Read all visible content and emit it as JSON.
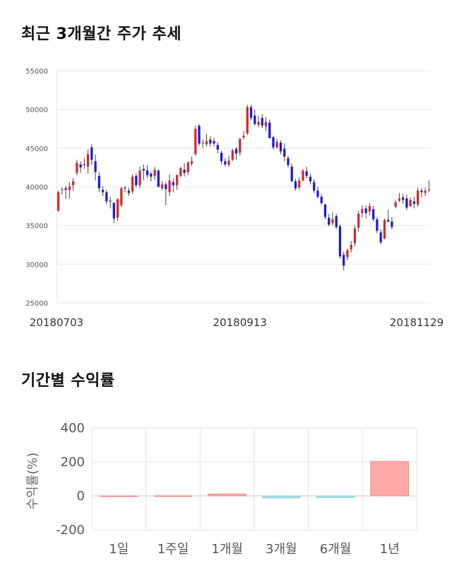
{
  "section1": {
    "title": "최근 3개월간 주가 추세"
  },
  "section2": {
    "title": "기간별 수익률"
  },
  "chart_data": [
    {
      "type": "candlestick",
      "ylim": [
        25000,
        55000
      ],
      "y_ticks": [
        "55000",
        "50000",
        "45000",
        "40000",
        "35000",
        "30000",
        "25000"
      ],
      "x_labels": [
        "20180703",
        "20180913",
        "20181129"
      ],
      "grid": true,
      "colors": {
        "up": "#d62728",
        "down": "#1a1ad6",
        "wick": "#444444"
      },
      "candles": [
        [
          36900,
          39300,
          39500,
          36800
        ],
        [
          39600,
          39700,
          39900,
          39000
        ],
        [
          39800,
          39600,
          40100,
          38400
        ],
        [
          39600,
          40000,
          40600,
          38500
        ],
        [
          40200,
          40700,
          41100,
          39500
        ],
        [
          41800,
          43100,
          43500,
          41500
        ],
        [
          42900,
          42500,
          43300,
          41800
        ],
        [
          42900,
          42800,
          43700,
          42300
        ],
        [
          42600,
          44200,
          44800,
          41700
        ],
        [
          45100,
          43500,
          45500,
          42800
        ],
        [
          43300,
          41900,
          44200,
          40800
        ],
        [
          41400,
          39800,
          41900,
          39300
        ],
        [
          39600,
          39300,
          40100,
          38800
        ],
        [
          39300,
          38100,
          39600,
          37700
        ],
        [
          38200,
          38100,
          38700,
          37200
        ],
        [
          37900,
          35900,
          38000,
          35300
        ],
        [
          36000,
          38400,
          38500,
          35600
        ],
        [
          37600,
          39800,
          40000,
          37400
        ],
        [
          39900,
          39800,
          40100,
          39300
        ],
        [
          39500,
          39200,
          39900,
          38800
        ],
        [
          39400,
          41300,
          41600,
          39100
        ],
        [
          41400,
          40200,
          41700,
          39900
        ],
        [
          40200,
          42100,
          42600,
          39800
        ],
        [
          42300,
          42100,
          42900,
          40900
        ],
        [
          42100,
          41500,
          42800,
          41100
        ],
        [
          41700,
          41300,
          41900,
          40700
        ],
        [
          41400,
          42200,
          42600,
          40900
        ],
        [
          42100,
          40000,
          42200,
          39900
        ],
        [
          39800,
          40300,
          40700,
          39600
        ],
        [
          40300,
          39700,
          40600,
          37600
        ],
        [
          39300,
          40800,
          41600,
          38800
        ],
        [
          40600,
          40200,
          41100,
          39300
        ],
        [
          40200,
          41500,
          41600,
          39600
        ],
        [
          41400,
          42400,
          42600,
          41200
        ],
        [
          42200,
          41800,
          43000,
          41300
        ],
        [
          41900,
          43100,
          43300,
          41500
        ],
        [
          43000,
          43300,
          43900,
          42700
        ],
        [
          44200,
          47500,
          47900,
          44000
        ],
        [
          47900,
          45600,
          48100,
          45300
        ],
        [
          45600,
          45700,
          46100,
          45000
        ],
        [
          45500,
          45900,
          46800,
          45200
        ],
        [
          46100,
          45600,
          46500,
          45200
        ],
        [
          45900,
          45600,
          46300,
          45200
        ],
        [
          45400,
          44800,
          45800,
          44300
        ],
        [
          44400,
          43300,
          44700,
          42900
        ],
        [
          43300,
          42900,
          43700,
          42600
        ],
        [
          42800,
          43400,
          44000,
          42600
        ],
        [
          43500,
          44700,
          44900,
          43300
        ],
        [
          44900,
          44300,
          45100,
          43500
        ],
        [
          44400,
          46200,
          46300,
          44000
        ],
        [
          46400,
          46600,
          47200,
          46100
        ],
        [
          46900,
          50300,
          50600,
          46700
        ],
        [
          50300,
          48900,
          50600,
          48600
        ],
        [
          49200,
          48100,
          50000,
          47900
        ],
        [
          48000,
          48400,
          49200,
          47700
        ],
        [
          48900,
          47900,
          49400,
          47600
        ],
        [
          47800,
          48400,
          49000,
          47200
        ],
        [
          48300,
          46300,
          48700,
          46200
        ],
        [
          46400,
          45100,
          46600,
          44800
        ],
        [
          45100,
          45800,
          46200,
          44900
        ],
        [
          45700,
          44600,
          46000,
          44200
        ],
        [
          44900,
          43900,
          45600,
          43300
        ],
        [
          43700,
          42800,
          44000,
          42500
        ],
        [
          42600,
          40700,
          43000,
          40600
        ],
        [
          40700,
          39800,
          41000,
          39500
        ],
        [
          39900,
          40800,
          41200,
          39600
        ],
        [
          40800,
          42100,
          42300,
          40700
        ],
        [
          42000,
          41400,
          42600,
          41100
        ],
        [
          41300,
          40700,
          41700,
          40300
        ],
        [
          40600,
          39500,
          41000,
          39200
        ],
        [
          39500,
          38700,
          40000,
          38500
        ],
        [
          38700,
          37900,
          39100,
          37600
        ],
        [
          37700,
          36100,
          37800,
          35800
        ],
        [
          36000,
          35100,
          36500,
          34900
        ],
        [
          35300,
          35800,
          36700,
          35000
        ],
        [
          36200,
          34800,
          36500,
          34500
        ],
        [
          34900,
          31000,
          35100,
          30700
        ],
        [
          31200,
          29800,
          31600,
          29200
        ],
        [
          30900,
          31800,
          32000,
          30500
        ],
        [
          31900,
          32500,
          33000,
          31500
        ],
        [
          32700,
          34600,
          35000,
          32300
        ],
        [
          34700,
          36500,
          36900,
          34200
        ],
        [
          36600,
          37100,
          37600,
          36000
        ],
        [
          37200,
          36600,
          37600,
          35900
        ],
        [
          36800,
          37500,
          37900,
          36300
        ],
        [
          37100,
          35800,
          37500,
          35500
        ],
        [
          35800,
          34300,
          36100,
          34000
        ],
        [
          34100,
          32800,
          34500,
          32600
        ],
        [
          33300,
          35700,
          35900,
          33200
        ],
        [
          35700,
          35500,
          37000,
          35400
        ],
        [
          35500,
          34800,
          36100,
          34500
        ],
        [
          37400,
          38000,
          38300,
          37200
        ],
        [
          38200,
          38500,
          39200,
          38000
        ],
        [
          38600,
          38300,
          39100,
          37800
        ],
        [
          38500,
          37300,
          39000,
          37000
        ],
        [
          37500,
          38300,
          38600,
          37400
        ],
        [
          38100,
          37800,
          38700,
          37200
        ],
        [
          37700,
          39500,
          39900,
          37400
        ],
        [
          39500,
          39300,
          39800,
          38600
        ],
        [
          39200,
          39500,
          39900,
          38800
        ],
        [
          39600,
          39700,
          40800,
          39300
        ]
      ]
    },
    {
      "type": "bar",
      "categories": [
        "1일",
        "1주일",
        "1개월",
        "3개월",
        "6개월",
        "1년"
      ],
      "values": [
        0,
        0.8,
        11,
        -12,
        -10,
        203
      ],
      "ylim": [
        -200,
        400
      ],
      "y_ticks": [
        "400",
        "200",
        "0",
        "-200"
      ],
      "ylabel": "수익률(%)",
      "colors": {
        "positive": "#ffa8a8",
        "negative": "#a9dde8",
        "positive_stroke": "#f08a8a",
        "negative_stroke": "#8ccfdd"
      },
      "grid": true
    }
  ]
}
